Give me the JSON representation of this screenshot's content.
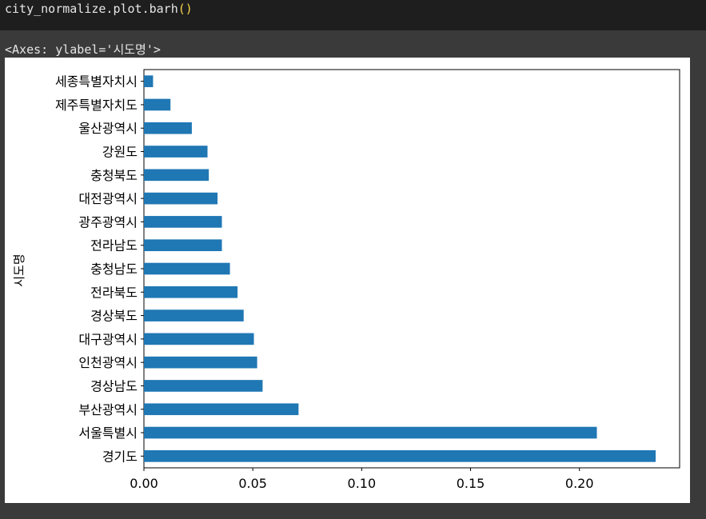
{
  "code_cell": {
    "code": "city_normalize.plot.barh",
    "paren_open": "(",
    "paren_close": ")"
  },
  "output": {
    "repr": "<Axes: ylabel='시도명'>"
  },
  "chart_data": {
    "type": "bar",
    "orientation": "horizontal",
    "categories": [
      "경기도",
      "서울특별시",
      "부산광역시",
      "경상남도",
      "인천광역시",
      "대구광역시",
      "경상북도",
      "전라북도",
      "충청남도",
      "전라남도",
      "광주광역시",
      "대전광역시",
      "충청북도",
      "강원도",
      "울산광역시",
      "제주특별자치도",
      "세종특별자치시"
    ],
    "values": [
      0.235,
      0.208,
      0.071,
      0.0545,
      0.052,
      0.0505,
      0.0458,
      0.043,
      0.0395,
      0.0358,
      0.0358,
      0.0338,
      0.0298,
      0.0292,
      0.022,
      0.0122,
      0.0042
    ],
    "ylabel": "시도명",
    "xlabel": "",
    "title": "",
    "xlim": [
      0,
      0.246
    ],
    "xticks": [
      "0.00",
      "0.05",
      "0.10",
      "0.15",
      "0.20"
    ],
    "xtick_values": [
      0,
      0.05,
      0.1,
      0.15,
      0.2
    ],
    "bar_color": "#1f77b4",
    "grid": false,
    "legend": "none"
  }
}
